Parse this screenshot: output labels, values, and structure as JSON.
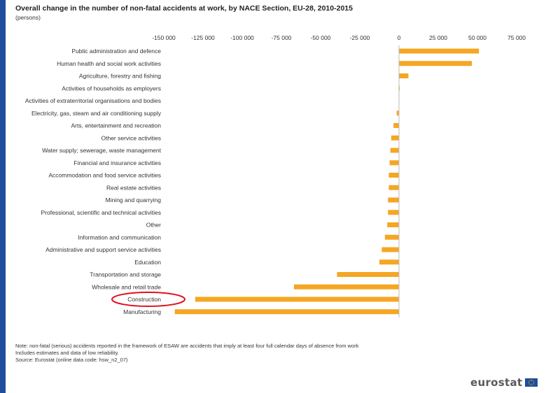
{
  "title": "Overall change in the number of non-fatal accidents at work, by NACE Section, EU-28, 2010-2015",
  "unit": "(persons)",
  "note_lines": [
    "Note: non-fatal (serious) accidents reported in the framework of ESAW are accidents that imply at least four full calendar days of absence from work",
    "Includes estimates and data of low reliability.",
    "Source: Eurostat (online data code: hsw_n2_07)"
  ],
  "logo_text": "eurostat",
  "colors": {
    "bar": "#f5a623",
    "highlight": "#e0111a",
    "frame": "#1f4e9c"
  },
  "highlighted_category": "Construction",
  "chart_data": {
    "type": "bar",
    "orientation": "horizontal",
    "xlim": [
      -150000,
      75000
    ],
    "x_ticks": [
      -150000,
      -125000,
      -100000,
      -75000,
      -50000,
      -25000,
      0,
      25000,
      50000,
      75000
    ],
    "x_tick_labels": [
      "-150 000",
      "-125 000",
      "-100 000",
      "-75 000",
      "-50 000",
      "-25 000",
      "0",
      "25 000",
      "50 000",
      "75 000"
    ],
    "categories": [
      "Public administration and defence",
      "Human health and social work activities",
      "Agriculture, forestry and fishing",
      "Activities of households as employers",
      "Activities of extraterritorial organisations and bodies",
      "Electricity, gas, steam and air conditioning supply",
      "Arts, entertainment and recreation",
      "Other service activities",
      "Water supply; sewerage, waste management",
      "Financial and insurance activities",
      "Accommodation and food service activities",
      "Real estate activities",
      "Mining and quarrying",
      "Professional, scientific and technical activities",
      "Other",
      "Information and communication",
      "Administrative and support service activities",
      "Education",
      "Transportation and storage",
      "Wholesale and retail trade",
      "Construction",
      "Manufacturing"
    ],
    "values": [
      51000,
      46500,
      6000,
      200,
      -200,
      -1500,
      -3500,
      -5000,
      -5500,
      -6000,
      -6500,
      -6500,
      -7000,
      -7000,
      -7500,
      -9000,
      -11000,
      -12500,
      -39500,
      -67000,
      -130000,
      -143000
    ],
    "grid": false,
    "legend": "none"
  }
}
